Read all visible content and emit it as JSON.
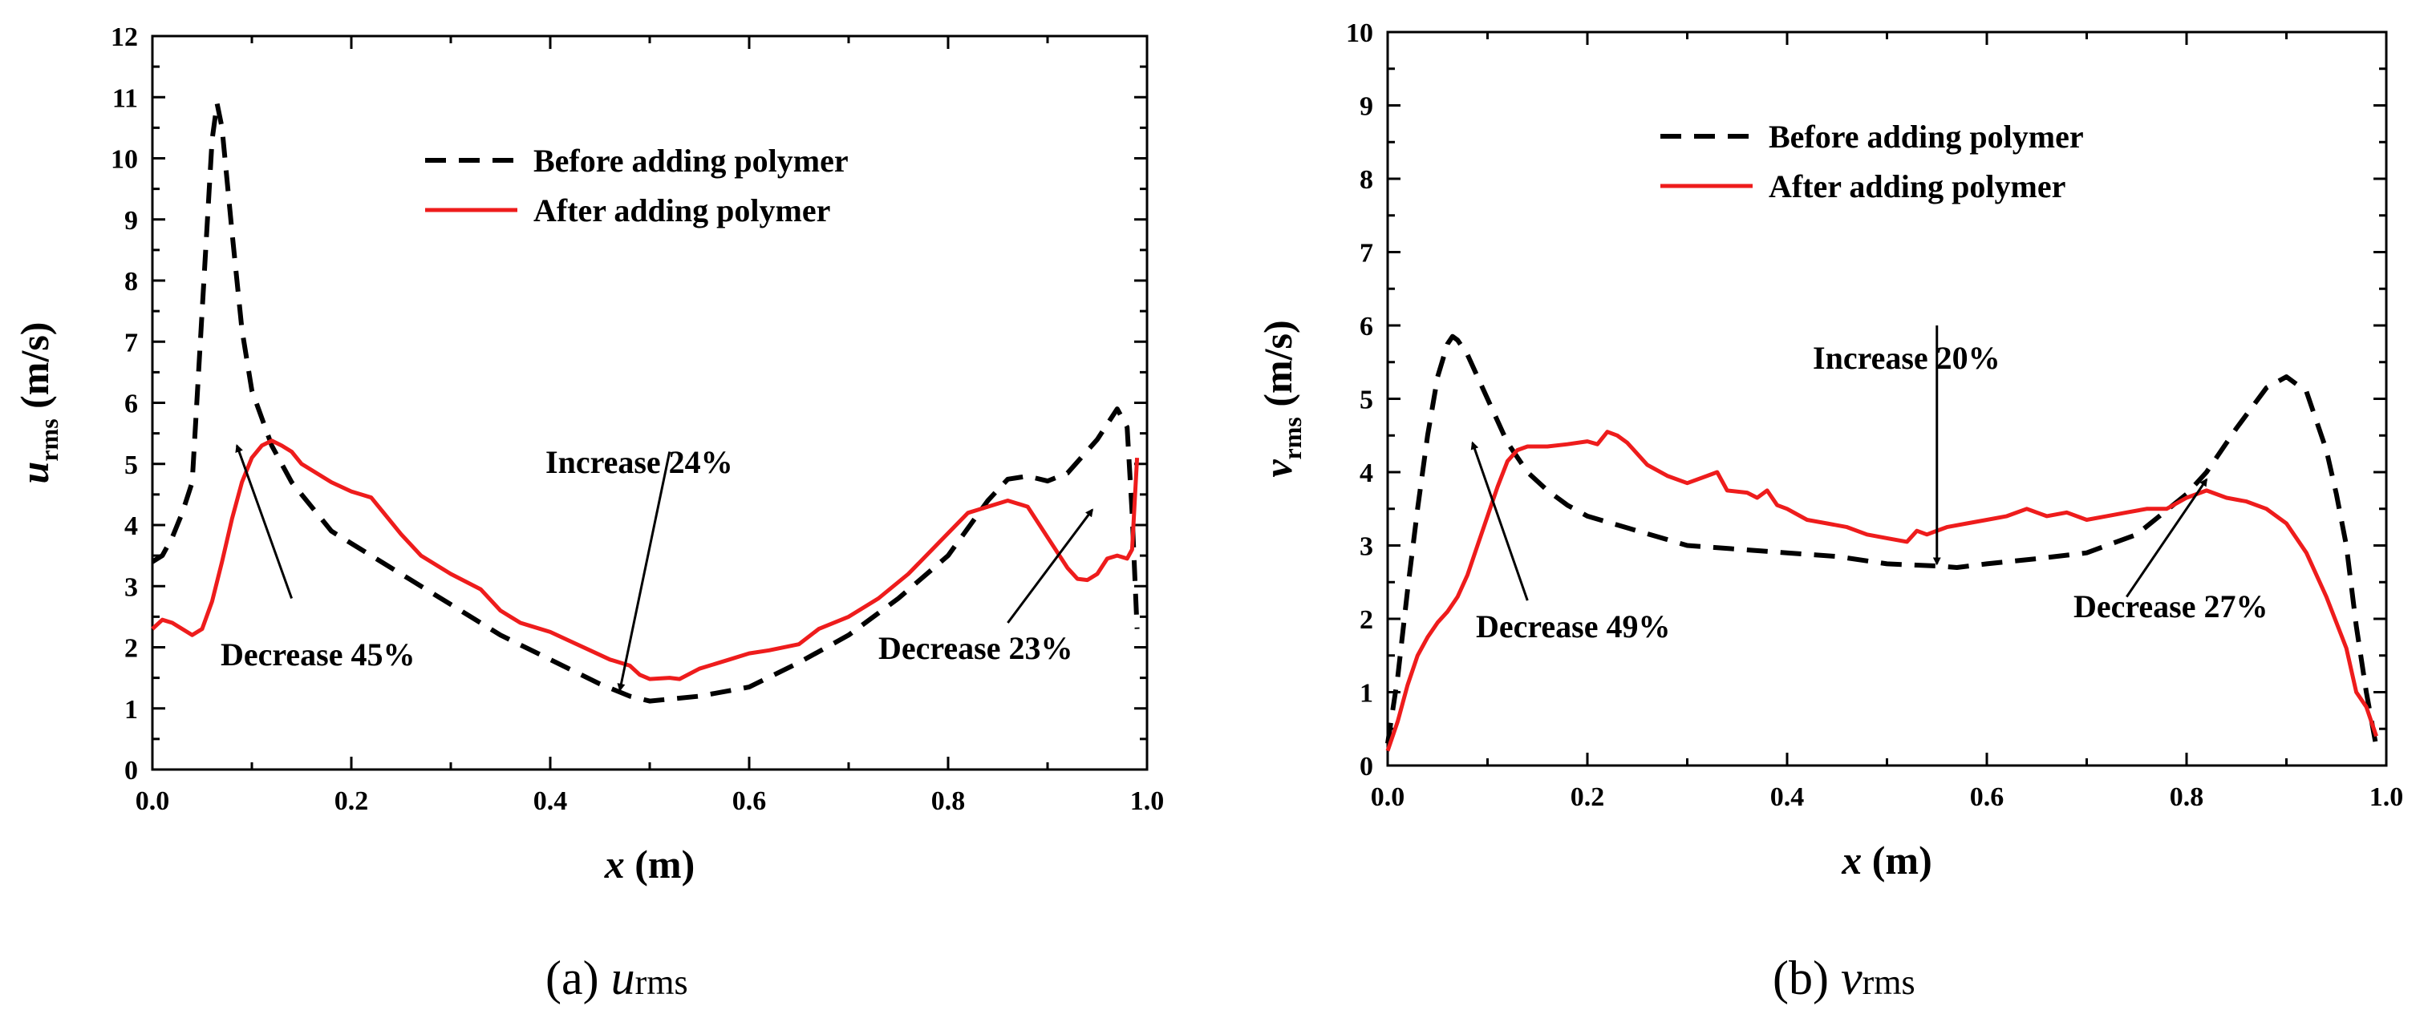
{
  "figure": {
    "background": "#ffffff",
    "axis_color": "#000000"
  },
  "chart_data": [
    {
      "type": "line",
      "panel": "a",
      "caption": "(a)",
      "caption_var": "u",
      "caption_sub": "rms",
      "ylabel_var": "u",
      "ylabel_sub": "rms",
      "ylabel_unit": "(m/s)",
      "xlabel_var": "x",
      "xlabel_unit": "(m)",
      "xlim": [
        0,
        1.0
      ],
      "ylim": [
        0,
        12
      ],
      "xticks": [
        0.0,
        0.2,
        0.4,
        0.6,
        0.8,
        1.0
      ],
      "xtick_labels": [
        "0.0",
        "0.2",
        "0.4",
        "0.6",
        "0.8",
        "1.0"
      ],
      "yticks": [
        0,
        1,
        2,
        3,
        4,
        5,
        6,
        7,
        8,
        9,
        10,
        11,
        12
      ],
      "ytick_labels": [
        "0",
        "1",
        "2",
        "3",
        "4",
        "5",
        "6",
        "7",
        "8",
        "9",
        "10",
        "11",
        "12"
      ],
      "legend_position": "top-center",
      "legend": [
        "Before adding polymer",
        "After adding polymer"
      ],
      "series": [
        {
          "name": "Before adding polymer",
          "style": "dashed",
          "color": "#000000",
          "x": [
            0.0,
            0.01,
            0.02,
            0.03,
            0.04,
            0.05,
            0.06,
            0.065,
            0.07,
            0.08,
            0.09,
            0.1,
            0.12,
            0.14,
            0.16,
            0.18,
            0.2,
            0.25,
            0.3,
            0.35,
            0.4,
            0.45,
            0.48,
            0.5,
            0.55,
            0.6,
            0.65,
            0.7,
            0.75,
            0.8,
            0.84,
            0.86,
            0.88,
            0.9,
            0.92,
            0.95,
            0.97,
            0.98,
            0.985,
            0.99
          ],
          "values": [
            3.4,
            3.5,
            3.8,
            4.2,
            4.7,
            7.5,
            10.3,
            10.9,
            10.5,
            8.8,
            7.2,
            6.2,
            5.3,
            4.7,
            4.3,
            3.9,
            3.7,
            3.2,
            2.7,
            2.2,
            1.8,
            1.4,
            1.2,
            1.12,
            1.2,
            1.35,
            1.75,
            2.2,
            2.8,
            3.5,
            4.4,
            4.75,
            4.8,
            4.72,
            4.85,
            5.4,
            5.9,
            5.6,
            4.2,
            2.3
          ]
        },
        {
          "name": "After adding polymer",
          "style": "solid",
          "color": "#ee1c1c",
          "x": [
            0.0,
            0.01,
            0.02,
            0.03,
            0.04,
            0.05,
            0.06,
            0.07,
            0.08,
            0.09,
            0.1,
            0.11,
            0.12,
            0.13,
            0.14,
            0.15,
            0.16,
            0.18,
            0.2,
            0.21,
            0.22,
            0.23,
            0.25,
            0.27,
            0.3,
            0.33,
            0.35,
            0.37,
            0.38,
            0.4,
            0.42,
            0.44,
            0.46,
            0.48,
            0.49,
            0.5,
            0.52,
            0.53,
            0.55,
            0.58,
            0.6,
            0.62,
            0.65,
            0.67,
            0.7,
            0.73,
            0.76,
            0.79,
            0.82,
            0.84,
            0.86,
            0.88,
            0.9,
            0.92,
            0.93,
            0.94,
            0.95,
            0.96,
            0.97,
            0.98,
            0.985,
            0.99
          ],
          "values": [
            2.3,
            2.45,
            2.4,
            2.3,
            2.2,
            2.3,
            2.75,
            3.4,
            4.1,
            4.7,
            5.1,
            5.3,
            5.38,
            5.3,
            5.2,
            5.0,
            4.9,
            4.7,
            4.55,
            4.5,
            4.45,
            4.25,
            3.85,
            3.5,
            3.2,
            2.95,
            2.6,
            2.4,
            2.35,
            2.25,
            2.1,
            1.95,
            1.8,
            1.7,
            1.55,
            1.48,
            1.5,
            1.48,
            1.65,
            1.8,
            1.9,
            1.95,
            2.05,
            2.3,
            2.5,
            2.8,
            3.2,
            3.7,
            4.2,
            4.3,
            4.4,
            4.3,
            3.8,
            3.3,
            3.12,
            3.1,
            3.2,
            3.45,
            3.5,
            3.45,
            3.6,
            5.1
          ]
        }
      ],
      "annotations": [
        {
          "text": "Decrease 45%",
          "x_from": 0.14,
          "y_from": 2.8,
          "x_to": 0.085,
          "y_to": 5.3
        },
        {
          "text": "Increase 24%",
          "x_from": 0.52,
          "y_from": 5.2,
          "x_to": 0.47,
          "y_to": 1.3
        },
        {
          "text": "Decrease 23%",
          "x_from": 0.86,
          "y_from": 2.4,
          "x_to": 0.945,
          "y_to": 4.25
        }
      ]
    },
    {
      "type": "line",
      "panel": "b",
      "caption": "(b)",
      "caption_var": "v",
      "caption_sub": "rms",
      "ylabel_var": "v",
      "ylabel_sub": "rms",
      "ylabel_unit": "(m/s)",
      "xlabel_var": "x",
      "xlabel_unit": "(m)",
      "xlim": [
        0,
        1.0
      ],
      "ylim": [
        0,
        10
      ],
      "xticks": [
        0.0,
        0.2,
        0.4,
        0.6,
        0.8,
        1.0
      ],
      "xtick_labels": [
        "0.0",
        "0.2",
        "0.4",
        "0.6",
        "0.8",
        "1.0"
      ],
      "yticks": [
        0,
        1,
        2,
        3,
        4,
        5,
        6,
        7,
        8,
        9,
        10
      ],
      "ytick_labels": [
        "0",
        "1",
        "2",
        "3",
        "4",
        "5",
        "6",
        "7",
        "8",
        "9",
        "10"
      ],
      "legend_position": "top-center",
      "legend": [
        "Before adding polymer",
        "After adding polymer"
      ],
      "series": [
        {
          "name": "Before adding polymer",
          "style": "dashed",
          "color": "#000000",
          "x": [
            0.0,
            0.01,
            0.02,
            0.03,
            0.04,
            0.05,
            0.06,
            0.065,
            0.07,
            0.08,
            0.1,
            0.12,
            0.14,
            0.16,
            0.18,
            0.2,
            0.25,
            0.3,
            0.35,
            0.4,
            0.45,
            0.5,
            0.55,
            0.57,
            0.6,
            0.65,
            0.7,
            0.75,
            0.8,
            0.82,
            0.85,
            0.88,
            0.9,
            0.92,
            0.94,
            0.95,
            0.96,
            0.97,
            0.98,
            0.99
          ],
          "values": [
            0.3,
            1.2,
            2.4,
            3.5,
            4.5,
            5.3,
            5.75,
            5.85,
            5.8,
            5.6,
            5.0,
            4.4,
            4.0,
            3.75,
            3.55,
            3.4,
            3.2,
            3.0,
            2.95,
            2.9,
            2.85,
            2.75,
            2.72,
            2.7,
            2.75,
            2.82,
            2.9,
            3.15,
            3.7,
            4.0,
            4.6,
            5.15,
            5.3,
            5.1,
            4.3,
            3.7,
            3.0,
            1.9,
            1.0,
            0.25
          ]
        },
        {
          "name": "After adding polymer",
          "style": "solid",
          "color": "#ee1c1c",
          "x": [
            0.0,
            0.01,
            0.02,
            0.03,
            0.04,
            0.05,
            0.06,
            0.07,
            0.08,
            0.09,
            0.1,
            0.11,
            0.12,
            0.13,
            0.14,
            0.15,
            0.16,
            0.18,
            0.2,
            0.21,
            0.22,
            0.23,
            0.24,
            0.26,
            0.28,
            0.3,
            0.32,
            0.33,
            0.34,
            0.36,
            0.37,
            0.38,
            0.39,
            0.4,
            0.42,
            0.44,
            0.46,
            0.48,
            0.5,
            0.52,
            0.53,
            0.54,
            0.56,
            0.58,
            0.6,
            0.62,
            0.64,
            0.66,
            0.68,
            0.7,
            0.72,
            0.74,
            0.76,
            0.78,
            0.8,
            0.82,
            0.84,
            0.86,
            0.88,
            0.9,
            0.92,
            0.94,
            0.96,
            0.97,
            0.98,
            0.99
          ],
          "values": [
            0.2,
            0.6,
            1.1,
            1.5,
            1.75,
            1.95,
            2.1,
            2.3,
            2.6,
            3.0,
            3.4,
            3.8,
            4.15,
            4.3,
            4.35,
            4.35,
            4.35,
            4.38,
            4.42,
            4.38,
            4.55,
            4.5,
            4.4,
            4.1,
            3.95,
            3.85,
            3.95,
            4.0,
            3.75,
            3.72,
            3.65,
            3.75,
            3.55,
            3.5,
            3.35,
            3.3,
            3.25,
            3.15,
            3.1,
            3.05,
            3.2,
            3.15,
            3.25,
            3.3,
            3.35,
            3.4,
            3.5,
            3.4,
            3.45,
            3.35,
            3.4,
            3.45,
            3.5,
            3.5,
            3.65,
            3.75,
            3.65,
            3.6,
            3.5,
            3.3,
            2.9,
            2.3,
            1.6,
            1.0,
            0.8,
            0.4
          ]
        }
      ],
      "annotations": [
        {
          "text": "Decrease 49%",
          "x_from": 0.14,
          "y_from": 2.25,
          "x_to": 0.085,
          "y_to": 4.4
        },
        {
          "text": "Increase 20%",
          "x_from": 0.55,
          "y_from": 6.0,
          "x_to": 0.55,
          "y_to": 2.75
        },
        {
          "text": "Decrease 27%",
          "x_from": 0.74,
          "y_from": 2.3,
          "x_to": 0.82,
          "y_to": 3.9
        }
      ]
    }
  ]
}
